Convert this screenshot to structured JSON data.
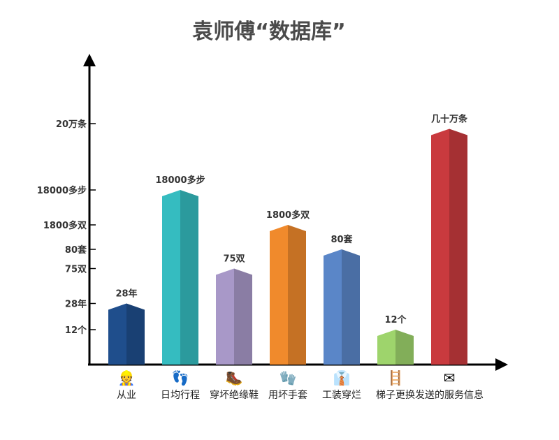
{
  "chart_data": {
    "type": "bar",
    "title": "袁师傅“数据库”",
    "xlabel": "",
    "ylabel": "",
    "categories": [
      "从业",
      "日均行程",
      "穿坏绝缘鞋",
      "用坏手套",
      "工装穿烂",
      "梯子更换",
      "发送的服务信息"
    ],
    "value_labels": [
      "28年",
      "18000多步",
      "75双",
      "1800多双",
      "80套",
      "12个",
      "几十万条"
    ],
    "y_ticks": [
      "12个",
      "28年",
      "75双",
      "80套",
      "1800多双",
      "18000多步",
      "20万条"
    ],
    "values": [
      0.35,
      1.0,
      0.55,
      0.8,
      0.66,
      0.2,
      1.35
    ],
    "colors": [
      "#1f4e8c",
      "#35bcc0",
      "#a898c8",
      "#f08a2c",
      "#5a86c8",
      "#9ed46c",
      "#c93a3e"
    ],
    "icons": [
      "worker-icon",
      "footprints-icon",
      "boot-icon",
      "glove-icon",
      "uniform-icon",
      "ladder-icon",
      "message-icon"
    ],
    "icon_glyphs": [
      "👷",
      "👣",
      "🥾",
      "🧤",
      "👔",
      "🪜",
      "✉"
    ],
    "grid": false
  }
}
